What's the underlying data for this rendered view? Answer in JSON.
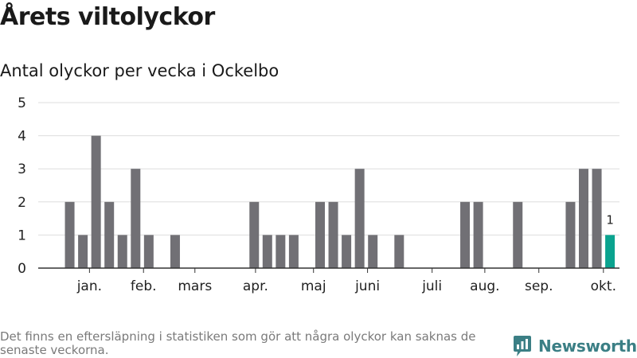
{
  "title": "Årets viltolyckor",
  "subtitle": "Antal olyckor per vecka i Ockelbo",
  "footnote": "Det finns en eftersläpning i statistiken som gör att några olyckor kan saknas de senaste veckorna.",
  "brand": {
    "name": "Newsworthy",
    "icon": "newsworthy-logo-icon",
    "color": "#3b7f85"
  },
  "colors": {
    "bar": "#717075",
    "highlight": "#0aa38f",
    "grid": "#dddddd",
    "axis": "#333333"
  },
  "chart_data": {
    "type": "bar",
    "title": "Antal olyckor per vecka i Ockelbo",
    "xlabel": "",
    "ylabel": "",
    "ylim": [
      0,
      5
    ],
    "yticks": [
      0,
      1,
      2,
      3,
      4,
      5
    ],
    "grid": true,
    "month_labels": [
      {
        "label": "jan.",
        "week": 3.5
      },
      {
        "label": "feb.",
        "week": 7.6
      },
      {
        "label": "mars",
        "week": 11.5
      },
      {
        "label": "apr.",
        "week": 16.1
      },
      {
        "label": "maj",
        "week": 20.5
      },
      {
        "label": "juni",
        "week": 24.6
      },
      {
        "label": "juli",
        "week": 29.5
      },
      {
        "label": "aug.",
        "week": 33.5
      },
      {
        "label": "sep.",
        "week": 37.6
      },
      {
        "label": "okt.",
        "week": 42.5
      }
    ],
    "weeks": [
      1,
      2,
      3,
      4,
      5,
      6,
      7,
      8,
      9,
      10,
      11,
      12,
      13,
      14,
      15,
      16,
      17,
      18,
      19,
      20,
      21,
      22,
      23,
      24,
      25,
      26,
      27,
      28,
      29,
      30,
      31,
      32,
      33,
      34,
      35,
      36,
      37,
      38,
      39,
      40,
      41,
      42,
      43
    ],
    "values": [
      0,
      2,
      1,
      4,
      2,
      1,
      3,
      1,
      0,
      1,
      0,
      0,
      0,
      0,
      0,
      2,
      1,
      1,
      1,
      0,
      2,
      2,
      1,
      3,
      1,
      0,
      1,
      0,
      0,
      0,
      0,
      2,
      2,
      0,
      0,
      2,
      0,
      0,
      0,
      2,
      3,
      3,
      1
    ],
    "highlight_index": 42,
    "highlight_label": "1"
  }
}
